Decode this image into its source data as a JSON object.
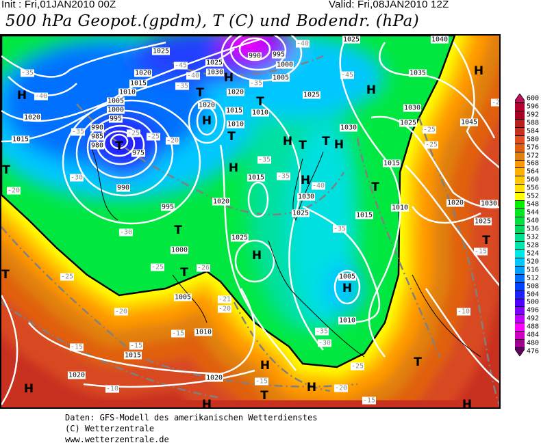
{
  "header": {
    "init": "Init : Fri,01JAN2010 00Z",
    "valid": "Valid: Fri,08JAN2010 12Z",
    "title": "500 hPa Geopot.(gpdm), T (C) und Bodendr. (hPa)"
  },
  "map": {
    "pressure_labels": [
      "1025",
      "1020",
      "1015",
      "1010",
      "1005",
      "1000",
      "995",
      "990",
      "985",
      "980",
      "975",
      "1020",
      "1015",
      "990",
      "995",
      "1025",
      "1030",
      "1020",
      "1020",
      "1015",
      "1010",
      "1010",
      "1020",
      "990",
      "995",
      "1000",
      "1005",
      "1025",
      "1030",
      "1035",
      "1030",
      "1025",
      "1045",
      "1015",
      "1015",
      "1030",
      "1025",
      "1025",
      "1040",
      "1015",
      "1010",
      "1020",
      "1030",
      "1025",
      "1025",
      "1000",
      "1005",
      "1010",
      "1015",
      "1020",
      "1020",
      "1005",
      "1010"
    ],
    "temperature_labels": [
      "-35",
      "-40",
      "-45",
      "-40",
      "-35",
      "-35",
      "-40",
      "-45",
      "-25",
      "-25",
      "-20",
      "-35",
      "-30",
      "-20",
      "-35",
      "-35",
      "-40",
      "-25",
      "-25",
      "-2",
      "-30",
      "-25",
      "-25",
      "-26",
      "-21",
      "-20",
      "-20",
      "-15",
      "-15",
      "-15",
      "-10",
      "-15",
      "-20",
      "-25",
      "-15",
      "-35",
      "-35",
      "-30",
      "-10",
      "-15"
    ],
    "pressure_systems": [
      "H",
      "H",
      "T",
      "T",
      "H",
      "T",
      "T",
      "T",
      "H",
      "H",
      "H",
      "T",
      "H",
      "H",
      "T",
      "T",
      "H",
      "H",
      "T",
      "T",
      "H",
      "T",
      "H",
      "T",
      "H",
      "H",
      "T",
      "H",
      "T",
      "H"
    ],
    "contour_552_color": "#000000",
    "isobar_color": "#ffffff",
    "isotherm_color": "#808080"
  },
  "colorbar": {
    "labels": [
      "600",
      "596",
      "592",
      "588",
      "584",
      "580",
      "576",
      "572",
      "568",
      "564",
      "560",
      "556",
      "552",
      "548",
      "544",
      "540",
      "536",
      "532",
      "528",
      "524",
      "520",
      "516",
      "512",
      "508",
      "504",
      "500",
      "496",
      "492",
      "488",
      "484",
      "480",
      "476"
    ],
    "colors": [
      "#c0105a",
      "#b80030",
      "#a80020",
      "#b82020",
      "#c83020",
      "#e05020",
      "#e06010",
      "#e08010",
      "#ff9800",
      "#ffb000",
      "#ffc800",
      "#ffe000",
      "#ffff00",
      "#00f000",
      "#00e820",
      "#00e040",
      "#00d860",
      "#00e090",
      "#00e8b0",
      "#00e8e8",
      "#00c8ff",
      "#00a0ff",
      "#0070ff",
      "#0040ff",
      "#2020ff",
      "#5000ff",
      "#8000ff",
      "#c000ff",
      "#ff00ff",
      "#d000c0",
      "#a00090",
      "#600060"
    ]
  },
  "footer": {
    "line1": "Daten: GFS-Modell des amerikanischen Wetterdienstes",
    "line2": "(C) Wetterzentrale",
    "line3": "www.wetterzentrale.de"
  }
}
